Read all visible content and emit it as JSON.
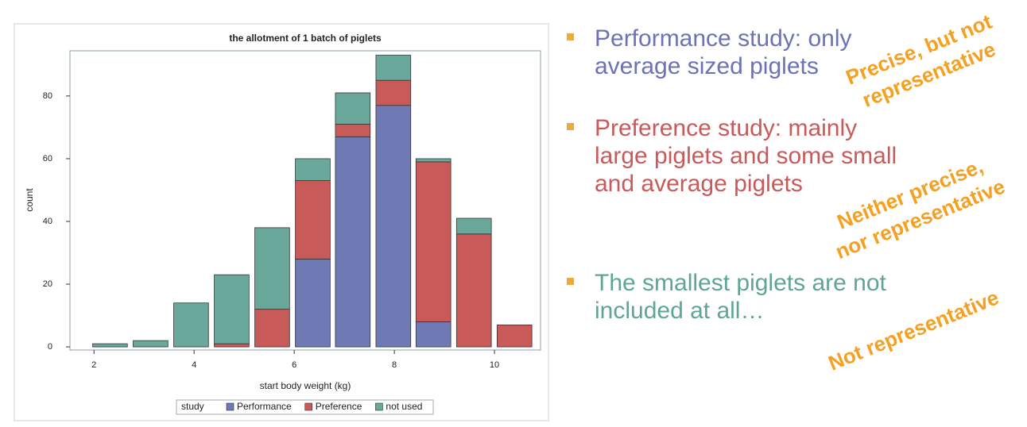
{
  "chart_data": {
    "type": "bar",
    "stacked": true,
    "title": "the allotment of 1 batch of piglets",
    "x_label": "start body weight (kg)",
    "y_label": "count",
    "x": [
      2.32,
      3.13,
      3.94,
      4.75,
      5.56,
      6.37,
      7.17,
      7.98,
      8.78,
      9.59,
      10.4
    ],
    "series": [
      {
        "name": "Performance",
        "color": "#6f7ab5",
        "values": [
          0,
          0,
          0,
          0,
          0,
          28,
          67,
          77,
          8,
          0,
          0
        ]
      },
      {
        "name": "Preference",
        "color": "#c85a5a",
        "values": [
          0,
          0,
          0,
          1,
          12,
          25,
          4,
          8,
          51,
          36,
          7
        ]
      },
      {
        "name": "not used",
        "color": "#6aa89c",
        "values": [
          1,
          2,
          14,
          22,
          26,
          7,
          10,
          8,
          1,
          5,
          0
        ]
      }
    ],
    "legend_title": "study",
    "legend": "bottom",
    "xlim": [
      1.52,
      10.92
    ],
    "xticks": [
      2,
      4,
      6,
      8,
      10
    ],
    "ylim": [
      -1,
      94.4
    ],
    "yticks": [
      0,
      20,
      40,
      60,
      80
    ],
    "grid": false
  },
  "bullets": [
    {
      "lines": [
        "Performance study: only",
        "average sized piglets"
      ],
      "color": "#6b72b5"
    },
    {
      "lines": [
        "Preference study: mainly",
        "large piglets and some small",
        "and average piglets"
      ],
      "color": "#c85a5a"
    },
    {
      "lines": [
        "The smallest piglets are not",
        "included at all…"
      ],
      "color": "#5fa596"
    }
  ],
  "stamps": [
    {
      "lines": [
        "Precise, but not",
        "representative"
      ]
    },
    {
      "lines": [
        "Neither precise,",
        "nor representative"
      ]
    },
    {
      "lines": [
        "Not representative"
      ]
    }
  ]
}
